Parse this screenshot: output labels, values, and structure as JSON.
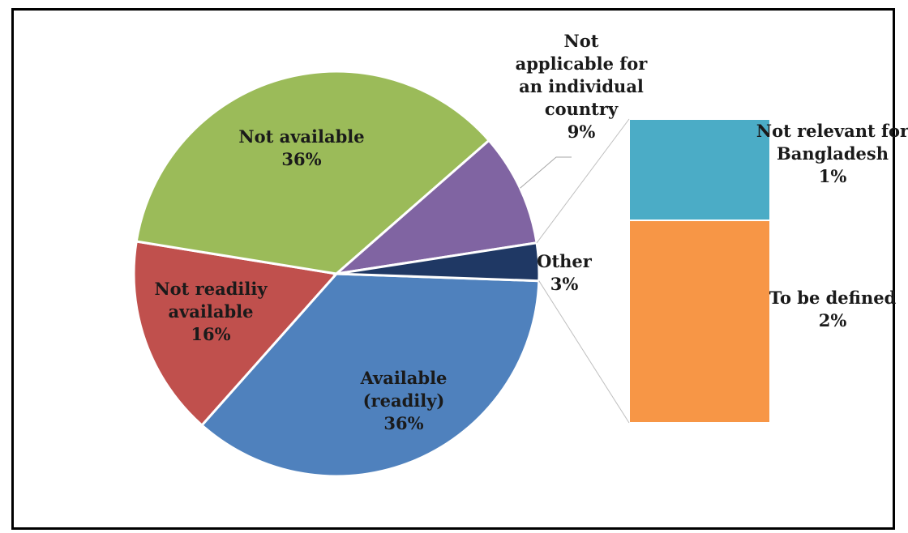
{
  "chart_data": {
    "type": "pie",
    "subtype": "pie-of-bar",
    "slices": [
      {
        "label": [
          "Available",
          "(readily)"
        ],
        "value": 36,
        "display": "36%",
        "color": "#4f81bd"
      },
      {
        "label": [
          "Not readiliy",
          "available"
        ],
        "value": 16,
        "display": "16%",
        "color": "#c0504d"
      },
      {
        "label": [
          "Not available"
        ],
        "value": 36,
        "display": "36%",
        "color": "#9bbb59"
      },
      {
        "label": [
          "Not",
          "applicable for",
          "an individual",
          "country"
        ],
        "value": 9,
        "display": "9%",
        "color": "#8064a2"
      },
      {
        "label": [
          "Other"
        ],
        "value": 3,
        "display": "3%",
        "color": "#1f3864"
      }
    ],
    "breakdown_of": "Other",
    "breakdown": [
      {
        "label": [
          "Not relevant for",
          "Bangladesh"
        ],
        "value": 1,
        "display": "1%",
        "color": "#4bacc6"
      },
      {
        "label": [
          "To be defined"
        ],
        "value": 2,
        "display": "2%",
        "color": "#f79646"
      }
    ]
  }
}
